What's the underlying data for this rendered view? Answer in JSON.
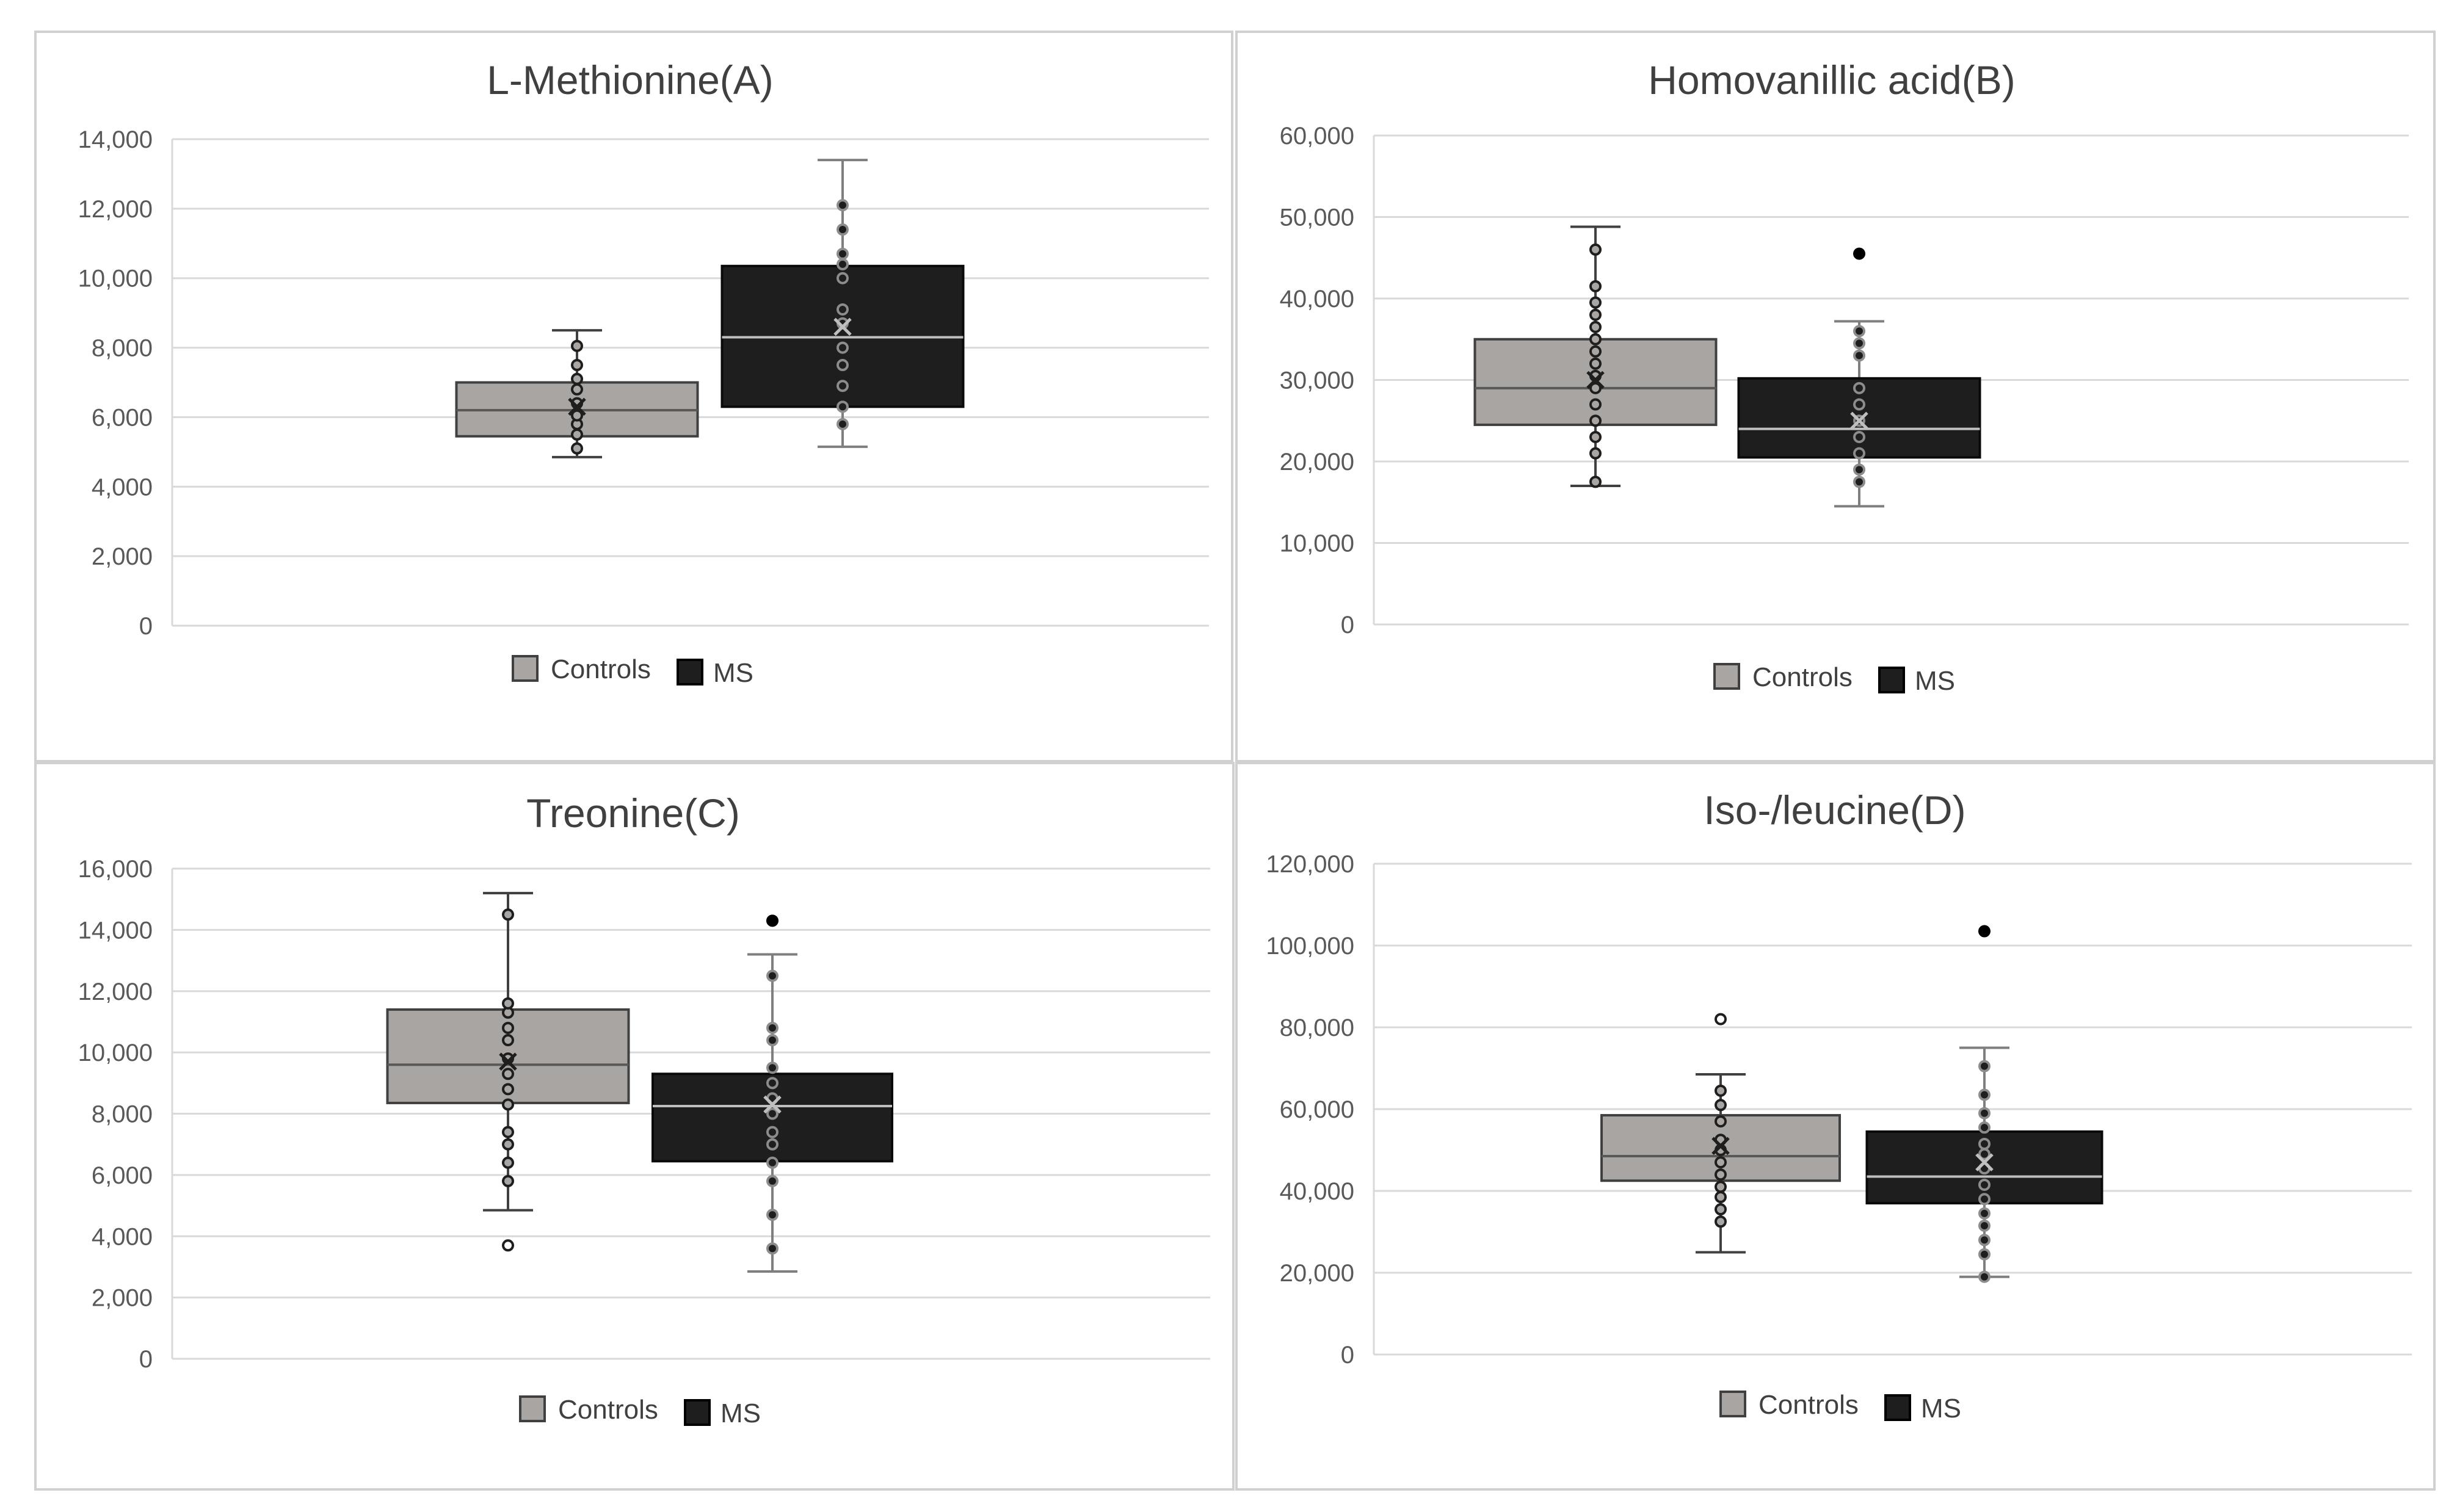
{
  "chart_data": [
    {
      "type": "box",
      "panel": "A",
      "title": "L-Methionine(A)",
      "ylim": [
        0,
        14000
      ],
      "yticks": [
        "0",
        "2,000",
        "4,000",
        "6,000",
        "8,000",
        "10,000",
        "12,000",
        "14,000"
      ],
      "ytick_values": [
        0,
        2000,
        4000,
        6000,
        8000,
        10000,
        12000,
        14000
      ],
      "legend": [
        "Controls",
        "MS"
      ],
      "series": [
        {
          "name": "Controls",
          "min": 4850,
          "q1": 5450,
          "median": 6200,
          "mean": 6300,
          "q3": 7000,
          "max": 8500,
          "points": [
            5100,
            5500,
            5800,
            6050,
            6400,
            6800,
            7100,
            7500,
            8050
          ],
          "outliers": []
        },
        {
          "name": "MS",
          "min": 5150,
          "q1": 6300,
          "median": 8300,
          "mean": 8600,
          "q3": 10350,
          "max": 13400,
          "points": [
            5800,
            6300,
            6900,
            7500,
            8000,
            8700,
            9100,
            10000,
            10400,
            10700,
            11400,
            12100
          ],
          "outliers": []
        }
      ]
    },
    {
      "type": "box",
      "panel": "B",
      "title": "Homovanillic acid(B)",
      "ylim": [
        0,
        60000
      ],
      "yticks": [
        "0",
        "10,000",
        "20,000",
        "30,000",
        "40,000",
        "50,000",
        "60,000"
      ],
      "ytick_values": [
        0,
        10000,
        20000,
        30000,
        40000,
        50000,
        60000
      ],
      "legend": [
        "Controls",
        "MS"
      ],
      "series": [
        {
          "name": "Controls",
          "min": 17000,
          "q1": 24500,
          "median": 29000,
          "mean": 30000,
          "q3": 35000,
          "max": 48800,
          "points": [
            17500,
            21000,
            23000,
            25000,
            27000,
            29000,
            30500,
            32000,
            33500,
            35000,
            36500,
            38000,
            39500,
            41500,
            46000
          ],
          "outliers": []
        },
        {
          "name": "MS",
          "min": 14500,
          "q1": 20500,
          "median": 24000,
          "mean": 25000,
          "q3": 30200,
          "max": 37200,
          "points": [
            17500,
            19000,
            21000,
            23000,
            25000,
            27000,
            29000,
            33000,
            34500,
            36000
          ],
          "outliers": [
            45500
          ]
        }
      ]
    },
    {
      "type": "box",
      "panel": "C",
      "title": "Treonine(C)",
      "ylim": [
        0,
        16000
      ],
      "yticks": [
        "0",
        "2,000",
        "4,000",
        "6,000",
        "8,000",
        "10,000",
        "12,000",
        "14,000",
        "16,000"
      ],
      "ytick_values": [
        0,
        2000,
        4000,
        6000,
        8000,
        10000,
        12000,
        14000,
        16000
      ],
      "legend": [
        "Controls",
        "MS"
      ],
      "series": [
        {
          "name": "Controls",
          "min": 4850,
          "q1": 8350,
          "median": 9600,
          "mean": 9700,
          "q3": 11400,
          "max": 15200,
          "points": [
            5800,
            6400,
            7000,
            7400,
            8300,
            8800,
            9300,
            9800,
            10400,
            10800,
            11300,
            11600,
            14500
          ],
          "outliers": [
            3700
          ]
        },
        {
          "name": "MS",
          "min": 2850,
          "q1": 6450,
          "median": 8250,
          "mean": 8300,
          "q3": 9300,
          "max": 13200,
          "points": [
            3600,
            4700,
            5800,
            6400,
            7000,
            7400,
            8000,
            8500,
            9000,
            9500,
            10400,
            10800,
            12500
          ],
          "outliers": [
            14300
          ]
        }
      ]
    },
    {
      "type": "box",
      "panel": "D",
      "title": "Iso-/leucine(D)",
      "ylim": [
        0,
        120000
      ],
      "yticks": [
        "0",
        "20,000",
        "40,000",
        "60,000",
        "80,000",
        "100,000",
        "120,000"
      ],
      "ytick_values": [
        0,
        20000,
        40000,
        60000,
        80000,
        100000,
        120000
      ],
      "legend": [
        "Controls",
        "MS"
      ],
      "series": [
        {
          "name": "Controls",
          "min": 25000,
          "q1": 42500,
          "median": 48500,
          "mean": 51000,
          "q3": 58500,
          "max": 68500,
          "points": [
            32500,
            35500,
            38500,
            41000,
            44000,
            47000,
            50000,
            52500,
            57000,
            61000,
            64500
          ],
          "outliers": [
            82000
          ]
        },
        {
          "name": "MS",
          "min": 19000,
          "q1": 37000,
          "median": 43500,
          "mean": 47000,
          "q3": 54500,
          "max": 75000,
          "points": [
            19000,
            24500,
            28000,
            31500,
            34500,
            38000,
            41500,
            45500,
            49000,
            51500,
            55500,
            59000,
            63500,
            70500
          ],
          "outliers": [
            103500
          ]
        }
      ]
    }
  ],
  "colors": {
    "controls_fill": "#a9a5a3",
    "ms_fill": "#1e1e1e",
    "median_controls": "#595959",
    "median_ms": "#bfbfbf",
    "grid": "#d9d9d9"
  }
}
